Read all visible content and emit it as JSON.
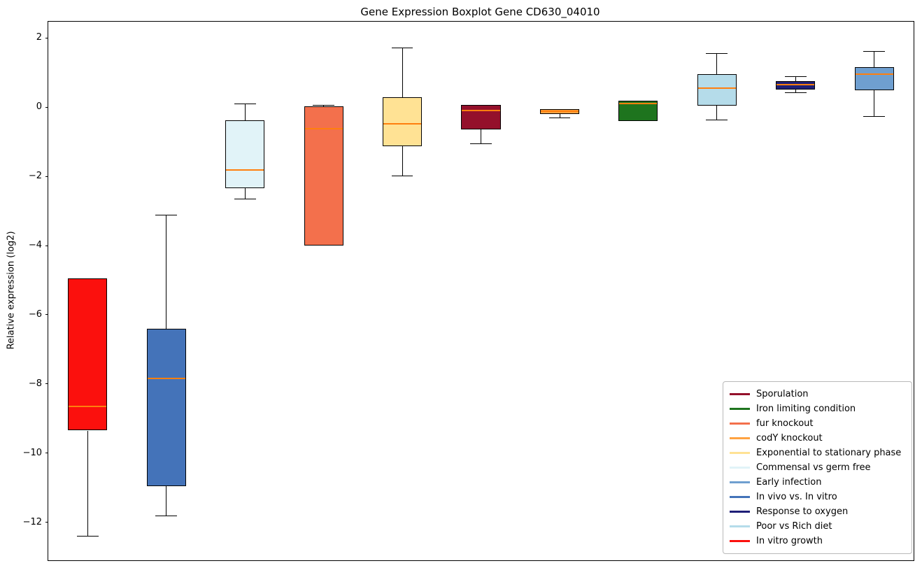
{
  "chart_data": {
    "type": "boxplot",
    "title": "Gene Expression Boxplot Gene CD630_04010",
    "ylabel": "Relative expression (log2)",
    "xlabel": "",
    "ylim": [
      -13.1,
      2.47
    ],
    "y_ticks": [
      2,
      0,
      -2,
      -4,
      -6,
      -8,
      -10,
      -12
    ],
    "y_tick_labels": [
      "2",
      "0",
      "−2",
      "−4",
      "−6",
      "−8",
      "−10",
      "−12"
    ],
    "grid": false,
    "median_color": "#ff7f0e",
    "series": [
      {
        "label": "In vitro growth",
        "color": "#fb100d",
        "whislo": -12.4,
        "q1": -9.35,
        "med": -8.65,
        "q3": -4.95,
        "whishi": -4.95
      },
      {
        "label": "In vivo vs. In vitro",
        "color": "#4473b9",
        "whislo": -11.8,
        "q1": -10.95,
        "med": -7.85,
        "q3": -6.4,
        "whishi": -3.1
      },
      {
        "label": "Commensal vs germ free",
        "color": "#e1f3f8",
        "whislo": -2.65,
        "q1": -2.35,
        "med": -1.82,
        "q3": -0.38,
        "whishi": 0.1
      },
      {
        "label": "fur knockout",
        "color": "#f3704c",
        "whislo": -4.0,
        "q1": -4.0,
        "med": -0.63,
        "q3": 0.02,
        "whishi": 0.07
      },
      {
        "label": "Exponential to stationary phase",
        "color": "#ffe294",
        "whislo": -1.98,
        "q1": -1.13,
        "med": -0.48,
        "q3": 0.28,
        "whishi": 1.73
      },
      {
        "label": "Sporulation",
        "color": "#94102b",
        "whislo": -1.05,
        "q1": -0.65,
        "med": -0.1,
        "q3": 0.07,
        "whishi": 0.07
      },
      {
        "label": "codY knockout",
        "color": "#ffa341",
        "whislo": -0.3,
        "q1": -0.2,
        "med": -0.11,
        "q3": -0.06,
        "whishi": -0.06
      },
      {
        "label": "Iron limiting condition",
        "color": "#1e741e",
        "whislo": -0.4,
        "q1": -0.4,
        "med": 0.1,
        "q3": 0.18,
        "whishi": 0.18
      },
      {
        "label": "Poor vs Rich diet",
        "color": "#b5dcea",
        "whislo": -0.36,
        "q1": 0.04,
        "med": 0.55,
        "q3": 0.95,
        "whishi": 1.56
      },
      {
        "label": "Response to oxygen",
        "color": "#1f1f77",
        "whislo": 0.42,
        "q1": 0.51,
        "med": 0.65,
        "q3": 0.75,
        "whishi": 0.89
      },
      {
        "label": "Early infection",
        "color": "#6f9fd0",
        "whislo": -0.26,
        "q1": 0.48,
        "med": 0.95,
        "q3": 1.15,
        "whishi": 1.62
      }
    ],
    "legend": {
      "position": "lower right",
      "entries": [
        "Sporulation",
        "Iron limiting condition",
        "fur knockout",
        "codY knockout",
        "Exponential to stationary phase",
        "Commensal vs germ free",
        "Early infection",
        "In vivo vs. In vitro",
        "Response to oxygen",
        "Poor vs Rich diet",
        "In vitro growth"
      ]
    }
  }
}
